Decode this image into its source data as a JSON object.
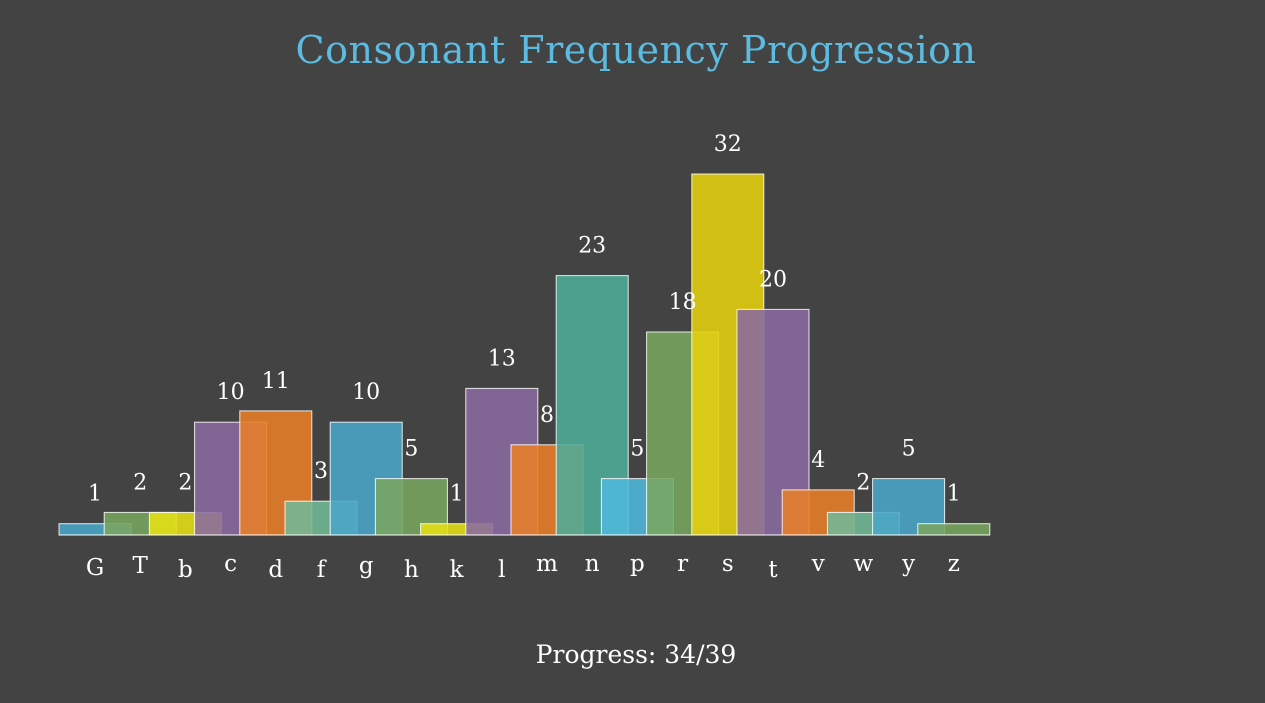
{
  "chart_data": {
    "type": "bar",
    "title": "Consonant Frequency Progression",
    "categories": [
      "G",
      "T",
      "b",
      "c",
      "d",
      "f",
      "g",
      "h",
      "k",
      "l",
      "m",
      "n",
      "p",
      "r",
      "s",
      "t",
      "v",
      "w",
      "y",
      "z"
    ],
    "values": [
      1,
      2,
      2,
      10,
      11,
      3,
      10,
      5,
      1,
      13,
      8,
      23,
      5,
      18,
      32,
      20,
      4,
      2,
      5,
      1
    ],
    "colors": [
      "#4aa6c8",
      "#77a560",
      "#e6e014",
      "#8a6aa0",
      "#e87e28",
      "#72b896",
      "#4aa6c8",
      "#77a560",
      "#e6e014",
      "#8a6aa0",
      "#e87e28",
      "#4fac98",
      "#4fb9dc",
      "#77a560",
      "#e6d00e",
      "#8a6aa0",
      "#e87e28",
      "#72b896",
      "#4aa6c8",
      "#77a560"
    ],
    "ylim": [
      0,
      32
    ],
    "grid": false,
    "legend": "none"
  },
  "progress": {
    "label": "Progress: 34/39"
  }
}
